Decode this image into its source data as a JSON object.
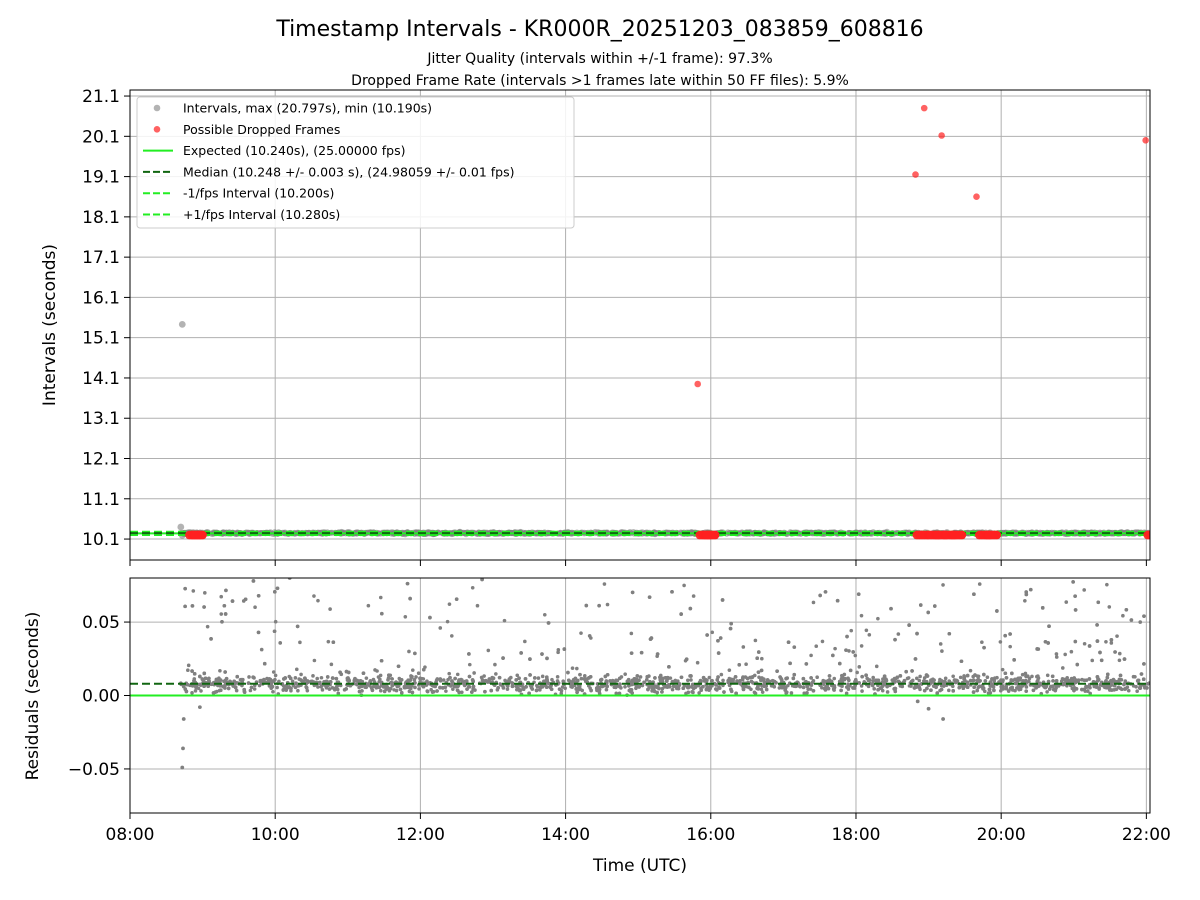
{
  "title": "Timestamp Intervals - KR000R_20251203_083859_608816",
  "subtitle1": "Jitter Quality (intervals within +/-1 frame): 97.3%",
  "subtitle2": "Dropped Frame Rate (intervals >1 frames late within 50 FF files): 5.9%",
  "colors": {
    "intervals": "#808080",
    "dropped": "#ff2020",
    "expected": "#22ee22",
    "median": "#116611",
    "grid": "#b0b0b0"
  },
  "chart_data": [
    {
      "type": "scatter",
      "name": "intervals",
      "xlabel": "",
      "ylabel": "Intervals (seconds)",
      "xlim": [
        8.0,
        22.05
      ],
      "ylim": [
        9.58,
        21.25
      ],
      "yticks": [
        10.1,
        11.1,
        12.1,
        13.1,
        14.1,
        15.1,
        16.1,
        17.1,
        18.1,
        19.1,
        20.1,
        21.1
      ],
      "ytick_labels": [
        "10.1",
        "11.1",
        "12.1",
        "13.1",
        "14.1",
        "15.1",
        "16.1",
        "17.1",
        "18.1",
        "19.1",
        "20.1",
        "21.1"
      ],
      "xticks": [
        8,
        10,
        12,
        14,
        16,
        18,
        20,
        22
      ],
      "grid": true,
      "legend_position": "top-left",
      "legend": [
        {
          "label": "Intervals, max (20.797s), min (10.190s)",
          "kind": "marker-gray"
        },
        {
          "label": "Possible Dropped Frames",
          "kind": "marker-red"
        },
        {
          "label": "Expected (10.240s), (25.00000 fps)",
          "kind": "solid-green"
        },
        {
          "label": "Median (10.248 +/- 0.003 s), (24.98059 +/- 0.01 fps)",
          "kind": "dash-darkgreen"
        },
        {
          "label": "-1/fps Interval (10.200s)",
          "kind": "dash-green"
        },
        {
          "label": "+1/fps Interval (10.280s)",
          "kind": "dash-green"
        }
      ],
      "reference_lines": {
        "expected": 10.24,
        "median": 10.248,
        "minus_one_fps": 10.2,
        "plus_one_fps": 10.28
      },
      "series": [
        {
          "name": "Intervals",
          "color": "#808080",
          "x_range": [
            8.7,
            22.05
          ],
          "typical_value": 10.248,
          "notable_points": [
            {
              "x": 8.72,
              "y": 15.43
            },
            {
              "x": 8.7,
              "y": 10.4
            },
            {
              "x": 8.72,
              "y": 10.19
            }
          ]
        },
        {
          "name": "Possible Dropped Frames",
          "color": "#ff2020",
          "points": [
            {
              "x": 8.82,
              "y": 10.2
            },
            {
              "x": 8.86,
              "y": 10.2
            },
            {
              "x": 15.82,
              "y": 13.95
            },
            {
              "x": 15.85,
              "y": 10.2
            },
            {
              "x": 15.92,
              "y": 10.2
            },
            {
              "x": 18.82,
              "y": 19.15
            },
            {
              "x": 18.84,
              "y": 10.2
            },
            {
              "x": 18.94,
              "y": 20.8
            },
            {
              "x": 19.0,
              "y": 10.2
            },
            {
              "x": 19.1,
              "y": 10.2
            },
            {
              "x": 19.18,
              "y": 20.12
            },
            {
              "x": 19.22,
              "y": 10.2
            },
            {
              "x": 19.32,
              "y": 10.2
            },
            {
              "x": 19.66,
              "y": 18.6
            },
            {
              "x": 19.7,
              "y": 10.2
            },
            {
              "x": 19.8,
              "y": 10.2
            },
            {
              "x": 21.99,
              "y": 20.0
            },
            {
              "x": 22.02,
              "y": 10.2
            }
          ]
        }
      ]
    },
    {
      "type": "scatter",
      "name": "residuals",
      "xlabel": "Time (UTC)",
      "ylabel": "Residuals (seconds)",
      "xlim": [
        8.0,
        22.05
      ],
      "ylim": [
        -0.08,
        0.08
      ],
      "yticks": [
        0.05,
        0.0,
        -0.05
      ],
      "ytick_labels": [
        "0.05",
        "0.00",
        "−0.05"
      ],
      "xticks": [
        8,
        10,
        12,
        14,
        16,
        18,
        20,
        22
      ],
      "xtick_labels": [
        "08:00",
        "10:00",
        "12:00",
        "14:00",
        "16:00",
        "18:00",
        "20:00",
        "22:00"
      ],
      "grid": true,
      "reference_lines": {
        "zero": 0.0,
        "median_residual": 0.008
      },
      "series": [
        {
          "name": "Residuals",
          "color": "#808080",
          "x_range": [
            8.7,
            22.05
          ],
          "typical_value": 0.008,
          "notable_points": [
            {
              "x": 8.72,
              "y": -0.049
            },
            {
              "x": 8.73,
              "y": -0.036
            },
            {
              "x": 8.74,
              "y": -0.016
            },
            {
              "x": 8.86,
              "y": 0.061
            },
            {
              "x": 9.7,
              "y": 0.078
            },
            {
              "x": 10.2,
              "y": 0.08
            },
            {
              "x": 12.85,
              "y": 0.079
            },
            {
              "x": 18.85,
              "y": -0.004
            },
            {
              "x": 19.0,
              "y": -0.009
            },
            {
              "x": 19.2,
              "y": -0.016
            }
          ]
        }
      ]
    }
  ]
}
